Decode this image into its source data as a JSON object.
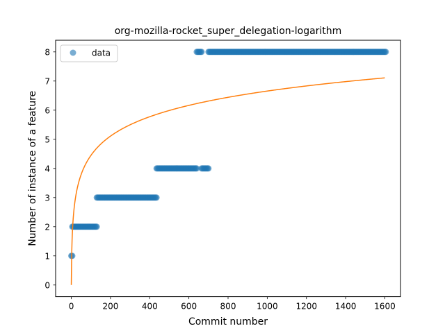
{
  "chart_data": {
    "type": "scatter",
    "title": "org-mozilla-rocket_super_delegation-logarithm",
    "xlabel": "Commit number",
    "ylabel": "Number of instance of a feature",
    "xlim": [
      -80,
      1680
    ],
    "ylim": [
      -0.4,
      8.4
    ],
    "xticks": [
      0,
      200,
      400,
      600,
      800,
      1000,
      1200,
      1400,
      1600
    ],
    "yticks": [
      0,
      1,
      2,
      3,
      4,
      5,
      6,
      7,
      8
    ],
    "grid": false,
    "legend_position": "top-left",
    "legend": [
      "data"
    ],
    "series": [
      {
        "name": "data",
        "kind": "scatter",
        "color": "#1f77b4",
        "segments": [
          {
            "y": 1,
            "x_start": 0,
            "x_end": 5
          },
          {
            "y": 2,
            "x_start": 5,
            "x_end": 130
          },
          {
            "y": 3,
            "x_start": 130,
            "x_end": 435
          },
          {
            "y": 4,
            "x_start": 435,
            "x_end": 640
          },
          {
            "y": 8,
            "x_start": 640,
            "x_end": 665
          },
          {
            "y": 4,
            "x_start": 665,
            "x_end": 700
          },
          {
            "y": 8,
            "x_start": 700,
            "x_end": 1605
          }
        ]
      },
      {
        "kind": "line",
        "color": "#ff7f0e",
        "model": "y = a + b*ln(x+1)",
        "a": 0.0,
        "b": 0.9634,
        "x_range": [
          0,
          1600
        ]
      }
    ]
  }
}
